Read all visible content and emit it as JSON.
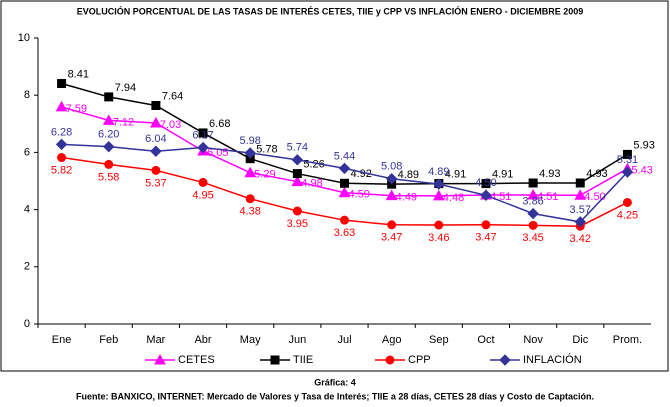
{
  "chart_data": {
    "type": "line",
    "title": "EVOLUCIÓN PORCENTUAL DE LAS TASAS DE INTERÉS CETES, TIIE y CPP VS INFLACIÓN ENERO - DICIEMBRE 2009",
    "caption": "Gráfica: 4",
    "source": "Fuente: BANXICO, INTERNET: Mercado de Valores y Tasa de Interés; TIIE a 28 días, CETES 28 días y Costo de Captación.",
    "categories": [
      "Ene",
      "Feb",
      "Mar",
      "Abr",
      "May",
      "Jun",
      "Jul",
      "Ago",
      "Sep",
      "Oct",
      "Nov",
      "Dic",
      "Prom."
    ],
    "ylim": [
      0,
      10
    ],
    "yticks": [
      0,
      2,
      4,
      6,
      8,
      10
    ],
    "grid": false,
    "legend": "bottom",
    "series": [
      {
        "name": "CETES",
        "color": "#ff00ff",
        "marker": "triangle",
        "values": [
          7.59,
          7.12,
          7.03,
          6.05,
          5.29,
          4.98,
          4.59,
          4.49,
          4.48,
          4.51,
          4.51,
          4.5,
          5.43
        ],
        "value_labels": [
          "7.59",
          "7.12",
          "7.03",
          "6.05",
          "5.29",
          "4.98",
          "4.59",
          "4.49",
          "4.48",
          "4.51",
          "4.51",
          "4.50",
          "5.43"
        ]
      },
      {
        "name": "TIIE",
        "color": "#000000",
        "marker": "square",
        "values": [
          8.41,
          7.94,
          7.64,
          6.68,
          5.78,
          5.26,
          4.92,
          4.89,
          4.91,
          4.91,
          4.93,
          4.93,
          5.93
        ],
        "value_labels": [
          "8.41",
          "7.94",
          "7.64",
          "6.68",
          "5.78",
          "5.26",
          "4.92",
          "4.89",
          "4.91",
          "4.91",
          "4.93",
          "4.93",
          "5.93"
        ]
      },
      {
        "name": "CPP",
        "color": "#ff0000",
        "marker": "circle",
        "values": [
          5.82,
          5.58,
          5.37,
          4.95,
          4.38,
          3.95,
          3.63,
          3.47,
          3.46,
          3.47,
          3.45,
          3.42,
          4.25
        ],
        "value_labels": [
          "5.82",
          "5.58",
          "5.37",
          "4.95",
          "4.38",
          "3.95",
          "3.63",
          "3.47",
          "3.46",
          "3.47",
          "3.45",
          "3.42",
          "4.25"
        ]
      },
      {
        "name": "INFLACIÓN",
        "color": "#333399",
        "marker": "diamond",
        "values": [
          6.28,
          6.2,
          6.04,
          6.17,
          5.98,
          5.74,
          5.44,
          5.08,
          4.89,
          4.5,
          3.86,
          3.57,
          5.31
        ],
        "value_labels": [
          "6.28",
          "6.20",
          "6.04",
          "6.17",
          "5.98",
          "5.74",
          "5.44",
          "5.08",
          "4.89",
          "4.50",
          "3.86",
          "3.57",
          "5.31"
        ]
      }
    ]
  }
}
